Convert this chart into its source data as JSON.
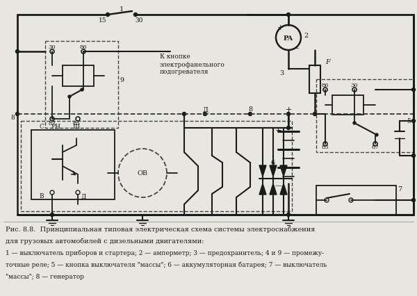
{
  "bg_color": "#e8e6e1",
  "line_color": "#1a1a1a",
  "figsize": [
    6.0,
    4.27
  ],
  "dpi": 100,
  "caption_lines": [
    {
      "text": "Рис. 8.8.  Принципиальная типовая электрическая схема системы электроснабжения",
      "bold": true
    },
    {
      "text": "для грузовых автомобилей с дизельными двигателями:",
      "bold": true
    },
    {
      "text": "1 — выключатель приборов и стартера; 2 — амперметр; 3 — предохранитель; 4 и 9 — промежу-",
      "bold": false
    },
    {
      "text": "точные реле; 5 — кнопка выключателя \"массы\"; 6 — аккумуляторная батарея; 7 — выключатель",
      "bold": false
    },
    {
      "text": "\"массы\"; 8 — генератор",
      "bold": false
    }
  ]
}
